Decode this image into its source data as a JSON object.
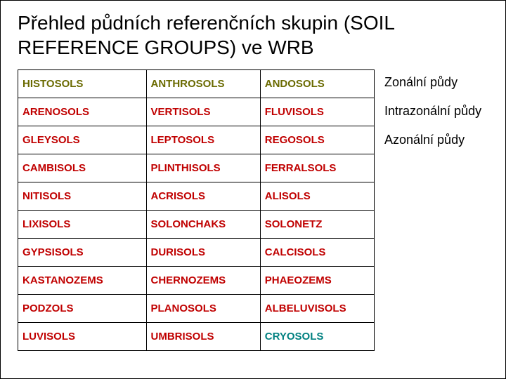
{
  "title": "Přehled půdních referenčních skupin (SOIL REFERENCE GROUPS) ve WRB",
  "table": {
    "columns": 3,
    "column_widths": [
      "36%",
      "32%",
      "32%"
    ],
    "cell_fontsize": 15,
    "cell_fontweight": "bold",
    "border_color": "#000000",
    "rows": [
      [
        {
          "text": "HISTOSOLS",
          "color": "#6a6a00"
        },
        {
          "text": "ANTHROSOLS",
          "color": "#6a6a00"
        },
        {
          "text": "ANDOSOLS",
          "color": "#6a6a00"
        }
      ],
      [
        {
          "text": "ARENOSOLS",
          "color": "#c00000"
        },
        {
          "text": "VERTISOLS",
          "color": "#c00000"
        },
        {
          "text": "FLUVISOLS",
          "color": "#c00000"
        }
      ],
      [
        {
          "text": "GLEYSOLS",
          "color": "#c00000"
        },
        {
          "text": "LEPTOSOLS",
          "color": "#c00000"
        },
        {
          "text": "REGOSOLS",
          "color": "#c00000"
        }
      ],
      [
        {
          "text": "CAMBISOLS",
          "color": "#c00000"
        },
        {
          "text": "PLINTHISOLS",
          "color": "#c00000"
        },
        {
          "text": "FERRALSOLS",
          "color": "#c00000"
        }
      ],
      [
        {
          "text": "NITISOLS",
          "color": "#c00000"
        },
        {
          "text": "ACRISOLS",
          "color": "#c00000"
        },
        {
          "text": "ALISOLS",
          "color": "#c00000"
        }
      ],
      [
        {
          "text": "LIXISOLS",
          "color": "#c00000"
        },
        {
          "text": "SOLONCHAKS",
          "color": "#c00000"
        },
        {
          "text": "SOLONETZ",
          "color": "#c00000"
        }
      ],
      [
        {
          "text": "GYPSISOLS",
          "color": "#c00000"
        },
        {
          "text": "DURISOLS",
          "color": "#c00000"
        },
        {
          "text": "CALCISOLS",
          "color": "#c00000"
        }
      ],
      [
        {
          "text": "KASTANOZEMS",
          "color": "#c00000"
        },
        {
          "text": "CHERNOZEMS",
          "color": "#c00000"
        },
        {
          "text": "PHAEOZEMS",
          "color": "#c00000"
        }
      ],
      [
        {
          "text": "PODZOLS",
          "color": "#c00000"
        },
        {
          "text": "PLANOSOLS",
          "color": "#c00000"
        },
        {
          "text": "ALBELUVISOLS",
          "color": "#c00000"
        }
      ],
      [
        {
          "text": "LUVISOLS",
          "color": "#c00000"
        },
        {
          "text": "UMBRISOLS",
          "color": "#c00000"
        },
        {
          "text": "CRYOSOLS",
          "color": "#008080"
        }
      ]
    ]
  },
  "legend": [
    {
      "text": "Zonální půdy"
    },
    {
      "text": "Intrazonální půdy"
    },
    {
      "text": "Azonální půdy"
    }
  ],
  "colors": {
    "background": "#ffffff",
    "text": "#000000"
  }
}
